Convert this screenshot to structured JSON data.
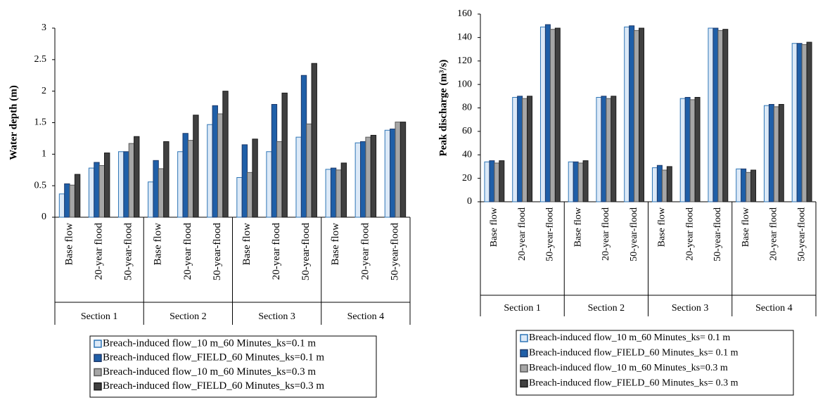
{
  "chart_data": [
    {
      "type": "bar",
      "ylabel": "Water depth (m)",
      "ylim": [
        0,
        3
      ],
      "yticks": [
        0,
        0.5,
        1,
        1.5,
        2,
        2.5,
        3
      ],
      "groups": [
        {
          "name": "Section 1",
          "categories": [
            "Base flow",
            "20-year flood",
            "50-year-flood"
          ]
        },
        {
          "name": "Section 2",
          "categories": [
            "Base flow",
            "20-year flood",
            "50-year-flood"
          ]
        },
        {
          "name": "Section 3",
          "categories": [
            "Base flow",
            "20-year flood",
            "50-year-flood"
          ]
        },
        {
          "name": "Section 4",
          "categories": [
            "Base flow",
            "20-year flood",
            "50-year-flood"
          ]
        }
      ],
      "series": [
        {
          "name": "Breach-induced flow_10 m_60 Minutes_ks=0.1 m",
          "color": "#dce9f7",
          "edgecolor": "#2e75b6",
          "values": [
            0.37,
            0.78,
            1.04,
            0.56,
            1.04,
            1.47,
            0.63,
            1.04,
            1.27,
            0.76,
            1.18,
            1.38
          ]
        },
        {
          "name": "Breach-induced flow_FIELD_60 Minutes_ks=0.1 m",
          "color": "#1f5fa8",
          "edgecolor": "#1f3a6b",
          "values": [
            0.53,
            0.87,
            1.04,
            0.9,
            1.33,
            1.77,
            1.15,
            1.79,
            2.25,
            0.78,
            1.2,
            1.4
          ]
        },
        {
          "name": "Breach-induced flow_10 m_60 Minutes_ks=0.3 m",
          "color": "#a6a6a6",
          "edgecolor": "#595959",
          "values": [
            0.51,
            0.82,
            1.17,
            0.77,
            1.22,
            1.64,
            0.71,
            1.2,
            1.48,
            0.75,
            1.27,
            1.51
          ]
        },
        {
          "name": "Breach-induced flow_FIELD_60 Minutes_ks=0.3 m",
          "color": "#404040",
          "edgecolor": "#1a1a1a",
          "values": [
            0.68,
            1.02,
            1.28,
            1.2,
            1.62,
            2.0,
            1.24,
            1.97,
            2.44,
            0.86,
            1.3,
            1.51
          ]
        }
      ]
    },
    {
      "type": "bar",
      "ylabel": "Peak discharge (m³/s)",
      "ylim": [
        0,
        160
      ],
      "yticks": [
        0,
        20,
        40,
        60,
        80,
        100,
        120,
        140,
        160
      ],
      "groups": [
        {
          "name": "Section 1",
          "categories": [
            "Base flow",
            "20-year flood",
            "50-year-flood"
          ]
        },
        {
          "name": "Section 2",
          "categories": [
            "Base flow",
            "20-year flood",
            "50-year-flood"
          ]
        },
        {
          "name": "Section 3",
          "categories": [
            "Base flow",
            "20-year flood",
            "50-year-flood"
          ]
        },
        {
          "name": "Section 4",
          "categories": [
            "Base flow",
            "20-year flood",
            "50-year-flood"
          ]
        }
      ],
      "series": [
        {
          "name": "Breach-induced flow_10 m_60 Minutes_ks= 0.1 m",
          "color": "#dce9f7",
          "edgecolor": "#2e75b6",
          "values": [
            34,
            89,
            149,
            34,
            89,
            149,
            29,
            88,
            148,
            28,
            82,
            135
          ]
        },
        {
          "name": "Breach-induced flow_FIELD_60 Minutes_ks= 0.1 m",
          "color": "#1f5fa8",
          "edgecolor": "#1f3a6b",
          "values": [
            35,
            90,
            151,
            34,
            90,
            150,
            31,
            89,
            148,
            28,
            83,
            135
          ]
        },
        {
          "name": "Breach-induced flow_10 m_60 Minutes_ks=0.3 m",
          "color": "#a6a6a6",
          "edgecolor": "#595959",
          "values": [
            33,
            88,
            147,
            33,
            88,
            146,
            27,
            87,
            146,
            25,
            81,
            134
          ]
        },
        {
          "name": "Breach-induced flow_FIELD_60 Minutes_ks= 0.3 m",
          "color": "#404040",
          "edgecolor": "#1a1a1a",
          "values": [
            35,
            90,
            148,
            35,
            90,
            148,
            30,
            89,
            147,
            27,
            83,
            136
          ]
        }
      ]
    }
  ]
}
